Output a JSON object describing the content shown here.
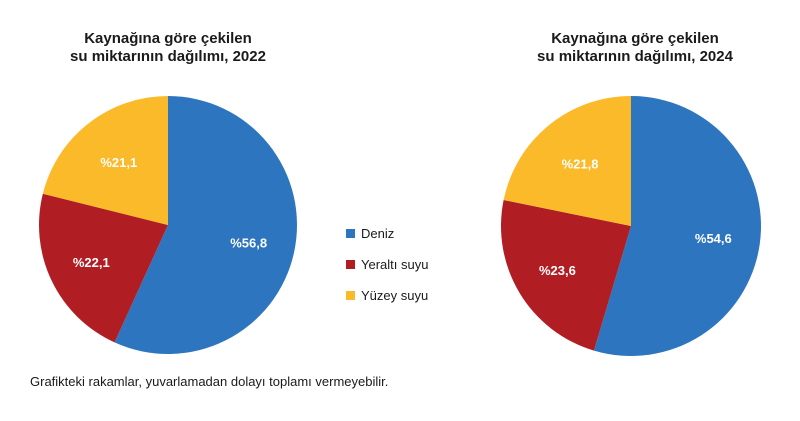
{
  "chart_data": [
    {
      "type": "pie",
      "title": [
        "Kaynağına göre çekilen",
        "su miktarının dağılımı, 2022"
      ],
      "series": [
        {
          "name": "Deniz",
          "value": 56.8,
          "label": "%56,8",
          "color": "#2E75C0"
        },
        {
          "name": "Yeraltı suyu",
          "value": 22.1,
          "label": "%22,1",
          "color": "#B01E24"
        },
        {
          "name": "Yüzey suyu",
          "value": 21.1,
          "label": "%21,1",
          "color": "#FBBA29"
        }
      ]
    },
    {
      "type": "pie",
      "title": [
        "Kaynağına göre çekilen",
        "su miktarının dağılımı, 2024"
      ],
      "series": [
        {
          "name": "Deniz",
          "value": 54.6,
          "label": "%54,6",
          "color": "#2E75C0"
        },
        {
          "name": "Yeraltı suyu",
          "value": 23.6,
          "label": "%23,6",
          "color": "#B01E24"
        },
        {
          "name": "Yüzey suyu",
          "value": 21.8,
          "label": "%21,8",
          "color": "#FBBA29"
        }
      ]
    }
  ],
  "legend": [
    {
      "label": "Deniz",
      "color": "#2E75C0"
    },
    {
      "label": "Yeraltı suyu",
      "color": "#B01E24"
    },
    {
      "label": "Yüzey suyu",
      "color": "#FBBA29"
    }
  ],
  "footnote": "Grafikteki rakamlar, yuvarlamadan dolayı toplamı vermeyebilir.",
  "colors": {
    "label_text_on_blue": "#ffffff",
    "label_text_on_red": "#ffffff",
    "label_text_on_yellow": "#ffffff"
  }
}
